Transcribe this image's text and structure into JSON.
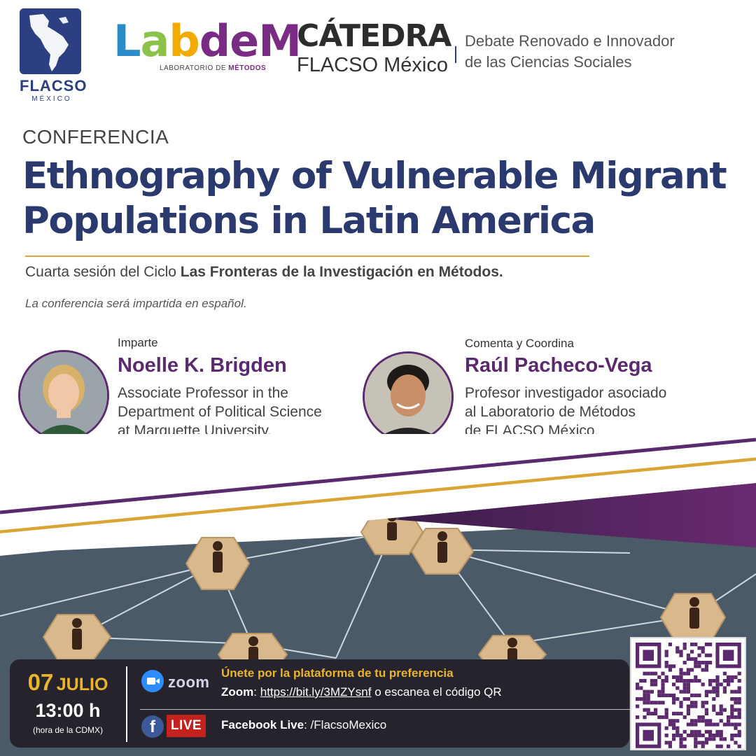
{
  "header": {
    "flacso": {
      "name": "FLACSO",
      "sub": "MÉXICO"
    },
    "labdem": {
      "letters": [
        "L",
        "a",
        "b",
        "d",
        "e",
        "M"
      ],
      "sub_prefix": "LABORATORIO DE ",
      "sub_bold": "MÉTODOS"
    },
    "catedra": {
      "title": "CÁTEDRA",
      "subtitle": "FLACSO México",
      "desc_line1": "Debate Renovado e Innovador",
      "desc_line2": "de las Ciencias Sociales"
    }
  },
  "event": {
    "type_label": "CONFERENCIA",
    "title_line1": "Ethnography of Vulnerable Migrant",
    "title_line2": "Populations in Latin America",
    "session_prefix": "Cuarta sesión del Ciclo ",
    "session_bold": "Las Fronteras de la Investigación en Métodos.",
    "language_note": "La conferencia será impartida en español."
  },
  "speakers": [
    {
      "role": "Imparte",
      "name": "Noelle K. Brigden",
      "desc": [
        "Associate Professor in the",
        "Department of Political Science",
        "at Marquette University."
      ]
    },
    {
      "role": "Comenta y Coordina",
      "name": "Raúl Pacheco-Vega",
      "desc": [
        "Profesor investigador asociado",
        "al Laboratorio de Métodos",
        "de FLACSO México."
      ]
    }
  ],
  "schedule": {
    "day": "07",
    "month": "JULIO",
    "time": "13:00 h",
    "timezone": "(hora de la CDMX)"
  },
  "access": {
    "zoom_word": "zoom",
    "join_text": "Únete por la plataforma de tu preferencia",
    "zoom_label": "Zoom",
    "zoom_colon": ": ",
    "zoom_link": "https://bit.ly/3MZYsnf",
    "zoom_suffix": " o escanea el código QR",
    "fb_letter": "f",
    "live_badge": "LIVE",
    "fb_label": "Facebook Live",
    "fb_handle": ": /FlacsoMexico"
  },
  "colors": {
    "navy": "#2b3a6e",
    "purple": "#5b2a6e",
    "gold": "#d9a534",
    "dark_bar": "#26232c"
  }
}
